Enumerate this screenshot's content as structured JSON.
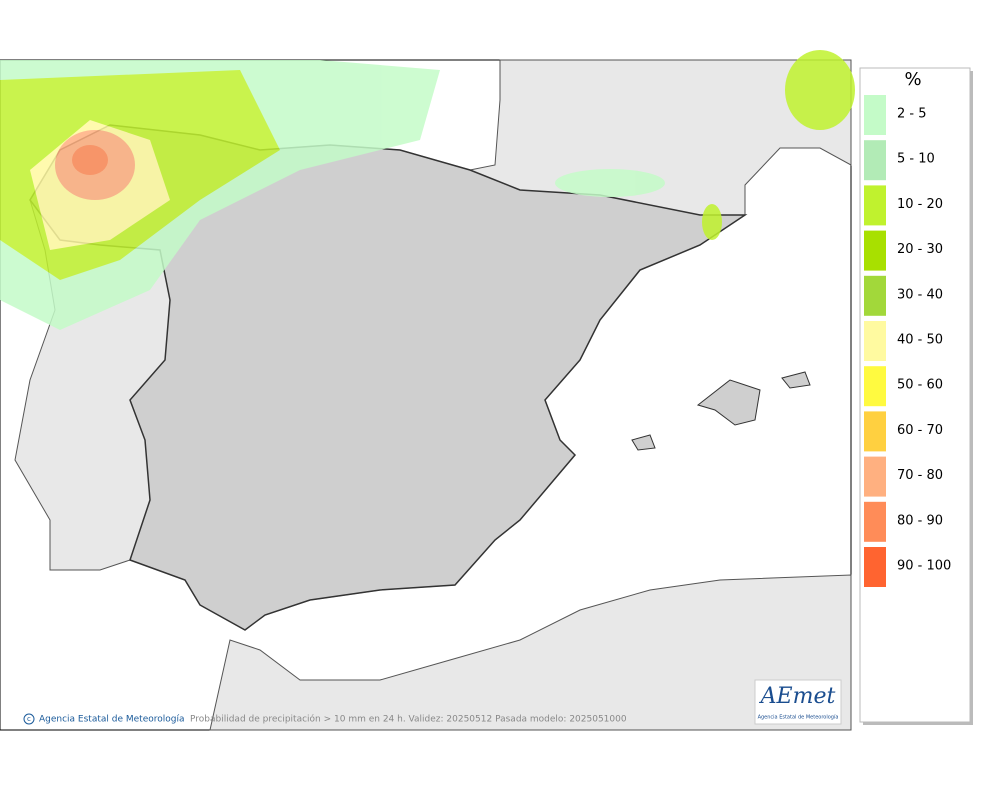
{
  "legend": {
    "title": "%",
    "items": [
      {
        "label": "2 - 5",
        "color": "#c4fbc8"
      },
      {
        "label": "5 - 10",
        "color": "#b2ebb6"
      },
      {
        "label": "10 - 20",
        "color": "#c0f22e"
      },
      {
        "label": "20 - 30",
        "color": "#a8e000"
      },
      {
        "label": "30 - 40",
        "color": "#a2d83a"
      },
      {
        "label": "40 - 50",
        "color": "#fffaa0"
      },
      {
        "label": "50 - 60",
        "color": "#fffa40"
      },
      {
        "label": "60 - 70",
        "color": "#ffd040"
      },
      {
        "label": "70 - 80",
        "color": "#ffb080"
      },
      {
        "label": "80 - 90",
        "color": "#ff8c58"
      },
      {
        "label": "90 - 100",
        "color": "#ff6430"
      }
    ]
  },
  "footer": {
    "credit": "Agencia Estatal de Meteorología",
    "caption": "Probabilidad de precipitación > 10 mm en 24 h. Validez: 20250512 Pasada modelo: 2025051000"
  },
  "logo": {
    "text": "AEmet",
    "subtitle": "Agencia Estatal de Meteorología"
  }
}
